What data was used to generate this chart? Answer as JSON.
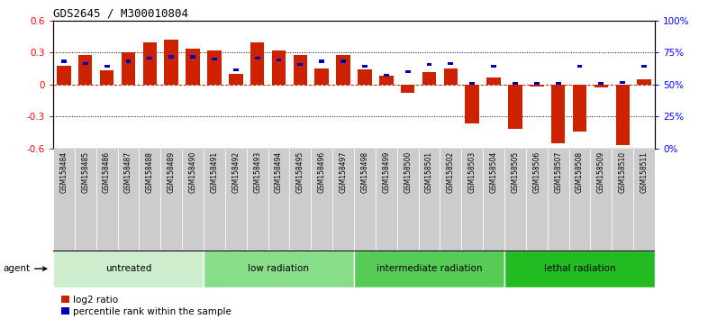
{
  "title": "GDS2645 / M300010804",
  "samples": [
    "GSM158484",
    "GSM158485",
    "GSM158486",
    "GSM158487",
    "GSM158488",
    "GSM158489",
    "GSM158490",
    "GSM158491",
    "GSM158492",
    "GSM158493",
    "GSM158494",
    "GSM158495",
    "GSM158496",
    "GSM158497",
    "GSM158498",
    "GSM158499",
    "GSM158500",
    "GSM158501",
    "GSM158502",
    "GSM158503",
    "GSM158504",
    "GSM158505",
    "GSM158506",
    "GSM158507",
    "GSM158508",
    "GSM158509",
    "GSM158510",
    "GSM158511"
  ],
  "log2_ratio": [
    0.18,
    0.28,
    0.13,
    0.3,
    0.4,
    0.42,
    0.34,
    0.32,
    0.1,
    0.4,
    0.32,
    0.28,
    0.15,
    0.28,
    0.14,
    0.08,
    -0.08,
    0.12,
    0.15,
    -0.37,
    0.07,
    -0.42,
    -0.02,
    -0.55,
    -0.44,
    -0.03,
    -0.57,
    0.05
  ],
  "pct_rank_mapped": [
    0.22,
    0.2,
    0.17,
    0.22,
    0.25,
    0.26,
    0.26,
    0.24,
    0.14,
    0.25,
    0.23,
    0.19,
    0.22,
    0.22,
    0.17,
    0.09,
    0.12,
    0.19,
    0.2,
    0.01,
    0.17,
    0.01,
    0.01,
    0.01,
    0.17,
    0.01,
    0.02,
    0.17
  ],
  "groups": [
    {
      "label": "untreated",
      "start": 0,
      "end": 7,
      "color": "#cceecc"
    },
    {
      "label": "low radiation",
      "start": 7,
      "end": 14,
      "color": "#88dd88"
    },
    {
      "label": "intermediate radiation",
      "start": 14,
      "end": 21,
      "color": "#55cc55"
    },
    {
      "label": "lethal radiation",
      "start": 21,
      "end": 28,
      "color": "#22bb22"
    }
  ],
  "bar_color": "#cc2200",
  "blue_color": "#0000bb",
  "ylim_lo": -0.6,
  "ylim_hi": 0.6,
  "yticks_left": [
    -0.6,
    -0.3,
    0.0,
    0.3,
    0.6
  ],
  "yticks_right_pct": [
    0,
    25,
    50,
    75,
    100
  ],
  "agent_label": "agent",
  "legend_log2": "log2 ratio",
  "legend_pct": "percentile rank within the sample",
  "xticklabel_bg": "#cccccc",
  "figure_bg": "#ffffff"
}
